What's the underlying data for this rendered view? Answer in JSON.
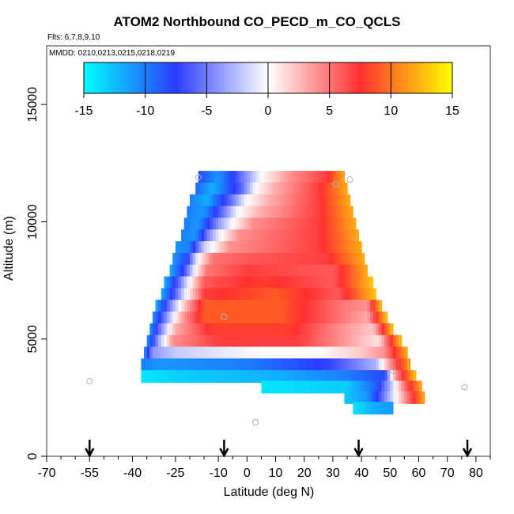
{
  "chart_data": {
    "type": "heatmap",
    "title": "ATOM2 Northbound CO_PECD_m_CO_QCLS",
    "flights_label": "Flts: 6,7,8,9,10",
    "mmdd_label": "MMDD: 0210,0213,0215,0218,0219",
    "xlabel": "Latitude (deg N)",
    "ylabel": "Altitude (m)",
    "xlim": [
      -70,
      85
    ],
    "ylim": [
      0,
      17500
    ],
    "x_ticks": [
      -70,
      -55,
      -40,
      -25,
      -10,
      0,
      10,
      20,
      30,
      40,
      50,
      60,
      70,
      80
    ],
    "y_ticks": [
      0,
      5000,
      10000,
      15000
    ],
    "x_minor_step": 5,
    "colorbar": {
      "min": -15,
      "max": 15,
      "ticks": [
        -15,
        -10,
        -5,
        0,
        5,
        10,
        15
      ],
      "colors": [
        "#00ffff",
        "#2b3cff",
        "#ffffff",
        "#ff3030",
        "#ffff00"
      ]
    },
    "arrows_lat": [
      -55,
      -8,
      39,
      77
    ],
    "points": [
      {
        "lat": -55,
        "alt": 3200
      },
      {
        "lat": -17,
        "alt": 11900
      },
      {
        "lat": 3,
        "alt": 1450
      },
      {
        "lat": -8,
        "alt": 5950
      },
      {
        "lat": 31,
        "alt": 11600
      },
      {
        "lat": 36,
        "alt": 11800
      },
      {
        "lat": 51,
        "alt": 3650
      },
      {
        "lat": 76,
        "alt": 2950
      }
    ],
    "bands": [
      {
        "alt": 11900,
        "lat_min": -17,
        "lat_max": 34,
        "stops": [
          [
            -17,
            -8
          ],
          [
            -10,
            -11
          ],
          [
            0,
            -4
          ],
          [
            5,
            0
          ],
          [
            15,
            4
          ],
          [
            28,
            7
          ],
          [
            34,
            12
          ]
        ]
      },
      {
        "alt": 11400,
        "lat_min": -18,
        "lat_max": 35,
        "stops": [
          [
            -18,
            -9
          ],
          [
            -12,
            -12
          ],
          [
            -2,
            -6
          ],
          [
            3,
            0
          ],
          [
            10,
            3
          ],
          [
            25,
            7
          ],
          [
            35,
            12
          ]
        ]
      },
      {
        "alt": 10900,
        "lat_min": -20,
        "lat_max": 36,
        "stops": [
          [
            -20,
            -10
          ],
          [
            -14,
            -12
          ],
          [
            -5,
            -5
          ],
          [
            0,
            0
          ],
          [
            8,
            3
          ],
          [
            25,
            7
          ],
          [
            36,
            12
          ]
        ]
      },
      {
        "alt": 10400,
        "lat_min": -21,
        "lat_max": 37,
        "stops": [
          [
            -21,
            -10
          ],
          [
            -15,
            -11
          ],
          [
            -8,
            -5
          ],
          [
            -3,
            0
          ],
          [
            5,
            3
          ],
          [
            25,
            7
          ],
          [
            37,
            12
          ]
        ]
      },
      {
        "alt": 9900,
        "lat_min": -22,
        "lat_max": 38,
        "stops": [
          [
            -22,
            -10
          ],
          [
            -17,
            -11
          ],
          [
            -10,
            -4
          ],
          [
            -5,
            0
          ],
          [
            2,
            4
          ],
          [
            25,
            7
          ],
          [
            38,
            12
          ]
        ]
      },
      {
        "alt": 9400,
        "lat_min": -23,
        "lat_max": 39,
        "stops": [
          [
            -23,
            -10
          ],
          [
            -18,
            -11
          ],
          [
            -13,
            -4
          ],
          [
            -9,
            0
          ],
          [
            -3,
            4
          ],
          [
            25,
            7
          ],
          [
            39,
            12
          ]
        ]
      },
      {
        "alt": 8900,
        "lat_min": -25,
        "lat_max": 40,
        "stops": [
          [
            -25,
            -11
          ],
          [
            -20,
            -10
          ],
          [
            -15,
            -2
          ],
          [
            -12,
            0
          ],
          [
            -6,
            4
          ],
          [
            25,
            7
          ],
          [
            40,
            12
          ]
        ]
      },
      {
        "alt": 8400,
        "lat_min": -26,
        "lat_max": 41,
        "stops": [
          [
            -26,
            -11
          ],
          [
            -21,
            -8
          ],
          [
            -17,
            0
          ],
          [
            -12,
            5
          ],
          [
            0,
            6
          ],
          [
            28,
            7
          ],
          [
            41,
            12
          ]
        ]
      },
      {
        "alt": 7900,
        "lat_min": -27,
        "lat_max": 42,
        "stops": [
          [
            -27,
            -12
          ],
          [
            -22,
            -7
          ],
          [
            -18,
            0
          ],
          [
            -14,
            5
          ],
          [
            0,
            7
          ],
          [
            30,
            6
          ],
          [
            42,
            12
          ]
        ]
      },
      {
        "alt": 7400,
        "lat_min": -29,
        "lat_max": 44,
        "stops": [
          [
            -29,
            -12
          ],
          [
            -24,
            -6
          ],
          [
            -20,
            0
          ],
          [
            -15,
            6
          ],
          [
            5,
            8
          ],
          [
            30,
            6
          ],
          [
            44,
            13
          ]
        ]
      },
      {
        "alt": 6900,
        "lat_min": -30,
        "lat_max": 45,
        "stops": [
          [
            -30,
            -12
          ],
          [
            -25,
            -6
          ],
          [
            -21,
            0
          ],
          [
            -15,
            7
          ],
          [
            10,
            9
          ],
          [
            32,
            6
          ],
          [
            45,
            13
          ]
        ]
      },
      {
        "alt": 6400,
        "lat_min": -32,
        "lat_max": 47,
        "stops": [
          [
            -32,
            -12
          ],
          [
            -27,
            -5
          ],
          [
            -22,
            2
          ],
          [
            -15,
            9
          ],
          [
            12,
            9
          ],
          [
            33,
            5
          ],
          [
            42,
            4
          ],
          [
            47,
            13
          ]
        ]
      },
      {
        "alt": 5900,
        "lat_min": -33,
        "lat_max": 49,
        "stops": [
          [
            -33,
            -11
          ],
          [
            -28,
            -4
          ],
          [
            -23,
            3
          ],
          [
            -15,
            9
          ],
          [
            12,
            9
          ],
          [
            33,
            5
          ],
          [
            42,
            3
          ],
          [
            49,
            13
          ]
        ]
      },
      {
        "alt": 5400,
        "lat_min": -34,
        "lat_max": 51,
        "stops": [
          [
            -34,
            -11
          ],
          [
            -29,
            -3
          ],
          [
            -25,
            3
          ],
          [
            -12,
            8
          ],
          [
            15,
            8
          ],
          [
            33,
            4
          ],
          [
            44,
            2
          ],
          [
            51,
            13
          ]
        ]
      },
      {
        "alt": 4900,
        "lat_min": -35,
        "lat_max": 54,
        "stops": [
          [
            -35,
            -11
          ],
          [
            -30,
            -2
          ],
          [
            -26,
            4
          ],
          [
            -10,
            7
          ],
          [
            18,
            7
          ],
          [
            33,
            4
          ],
          [
            46,
            1
          ],
          [
            54,
            13
          ]
        ]
      },
      {
        "alt": 4400,
        "lat_min": -36,
        "lat_max": 56,
        "stops": [
          [
            -36,
            -11
          ],
          [
            -33,
            -4
          ],
          [
            -25,
            -2
          ],
          [
            5,
            0
          ],
          [
            25,
            0
          ],
          [
            40,
            2
          ],
          [
            48,
            4
          ],
          [
            56,
            12
          ]
        ]
      },
      {
        "alt": 3900,
        "lat_min": -37,
        "lat_max": 57,
        "stops": [
          [
            -37,
            -10
          ],
          [
            -30,
            -11
          ],
          [
            0,
            -10
          ],
          [
            30,
            -7
          ],
          [
            45,
            -3
          ],
          [
            50,
            4
          ],
          [
            57,
            12
          ]
        ]
      },
      {
        "alt": 3400,
        "lat_min": -37,
        "lat_max": 59,
        "stops": [
          [
            -37,
            -14
          ],
          [
            -20,
            -13
          ],
          [
            10,
            -12
          ],
          [
            35,
            -10
          ],
          [
            48,
            -8
          ],
          [
            52,
            4
          ],
          [
            59,
            13
          ]
        ]
      },
      {
        "alt": 2950,
        "lat_min": 5,
        "lat_max": 61,
        "stops": [
          [
            5,
            -14
          ],
          [
            35,
            -13
          ],
          [
            45,
            -9
          ],
          [
            50,
            -3
          ],
          [
            55,
            5
          ],
          [
            61,
            12
          ]
        ]
      },
      {
        "alt": 2500,
        "lat_min": 34,
        "lat_max": 62,
        "stops": [
          [
            34,
            -13
          ],
          [
            42,
            -11
          ],
          [
            47,
            -6
          ],
          [
            52,
            0
          ],
          [
            57,
            6
          ],
          [
            62,
            12
          ]
        ]
      },
      {
        "alt": 2050,
        "lat_min": 37,
        "lat_max": 51,
        "stops": [
          [
            37,
            -14
          ],
          [
            44,
            -12
          ],
          [
            51,
            -11
          ]
        ]
      }
    ]
  }
}
